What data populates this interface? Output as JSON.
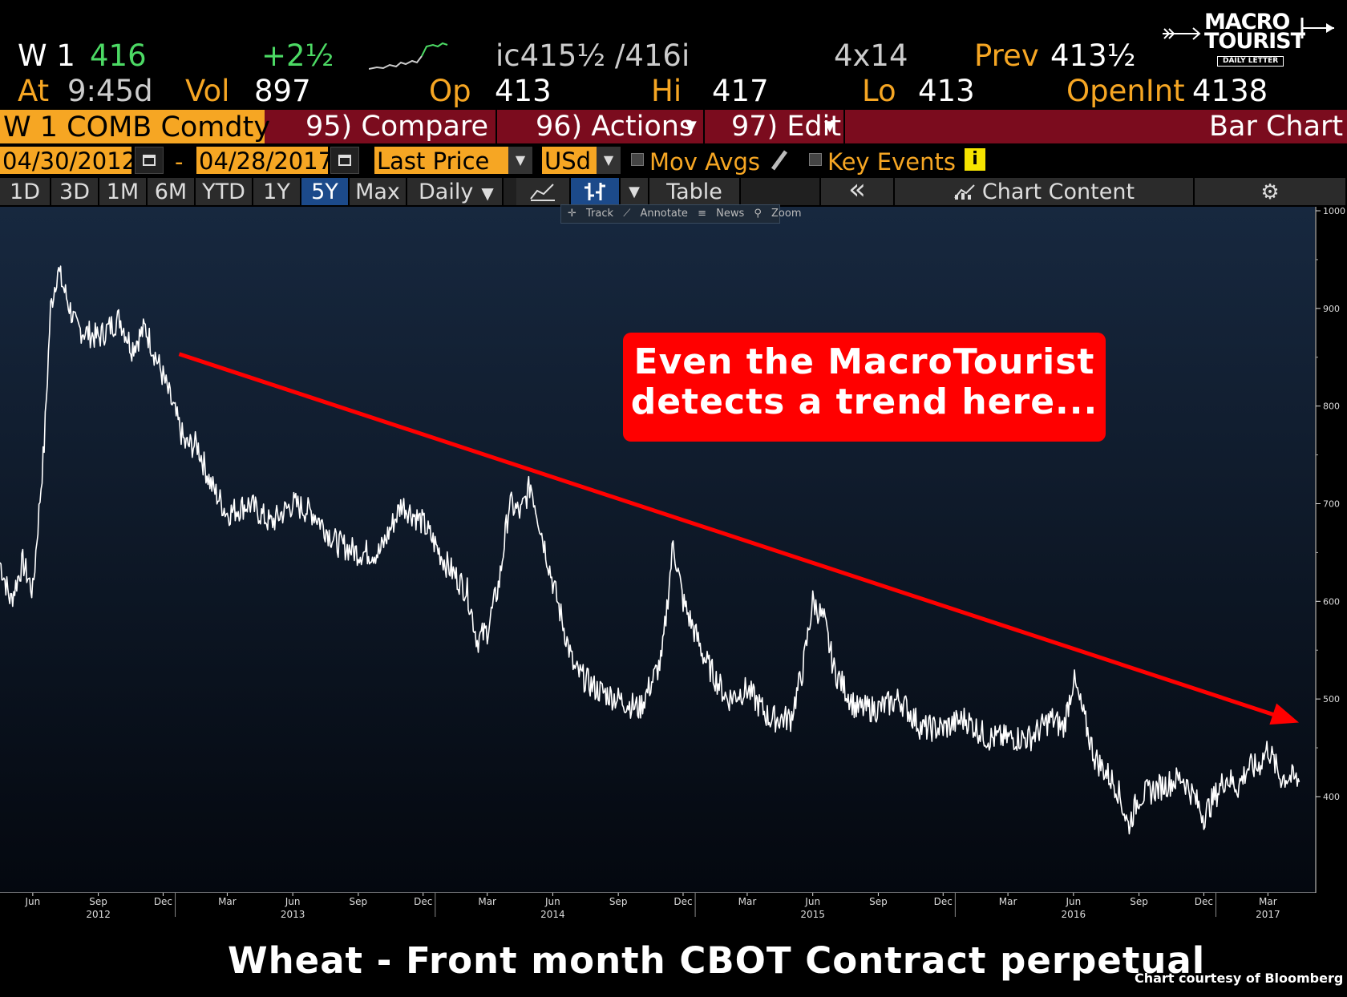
{
  "quote": {
    "ticker_short": "W 1",
    "last": "416",
    "change": "+2½",
    "bid_ask": "ic415½ /416i",
    "size": "4x14",
    "prev_label": "Prev",
    "prev": "413½",
    "at_label": "At",
    "time": "9:45d",
    "vol_label": "Vol",
    "vol": "897",
    "open_label": "Op",
    "open": "413",
    "high_label": "Hi",
    "high": "417",
    "low_label": "Lo",
    "low": "413",
    "oi_label": "OpenInt",
    "open_interest": "4138"
  },
  "logo": {
    "line1": "MACRO",
    "line2": "TOURIST",
    "line3": "DAILY LETTER"
  },
  "function_bar": {
    "security": "W 1 COMB Comdty",
    "compare": "95) Compare",
    "actions": "96) Actions",
    "edit": "97) Edit",
    "chart_type": "Bar Chart"
  },
  "settings": {
    "start_date": "04/30/2012",
    "date_sep": "-",
    "end_date": "04/28/2017",
    "field": "Last Price",
    "currency": "USd",
    "mov_avgs": "Mov Avgs",
    "key_events": "Key Events"
  },
  "periods": [
    "1D",
    "3D",
    "1M",
    "6M",
    "YTD",
    "1Y",
    "5Y",
    "Max"
  ],
  "active_period": "5Y",
  "frequency": "Daily",
  "toolbar": {
    "table": "Table",
    "collapse": "«",
    "chart_content": "Chart Content"
  },
  "chart_tools": [
    "Track",
    "Annotate",
    "News",
    "Zoom"
  ],
  "colors": {
    "orange": "#f6a623",
    "green": "#4cd964",
    "maroon": "#7b0c1e",
    "trend": "#ff0000",
    "active_tab": "#1c4a8a"
  },
  "chart_data": {
    "type": "line",
    "ylim": [
      350,
      1000
    ],
    "y_ticks": [
      400,
      500,
      600,
      700,
      800,
      900,
      1000
    ],
    "x_month_ticks": [
      "Jun",
      "Sep",
      "Dec",
      "Mar",
      "Jun",
      "Sep",
      "Dec",
      "Mar",
      "Jun",
      "Sep",
      "Dec",
      "Mar",
      "Jun",
      "Sep",
      "Dec",
      "Mar",
      "Jun",
      "Sep",
      "Dec",
      "Mar"
    ],
    "x_year_ticks": [
      "2012",
      "2013",
      "2014",
      "2015",
      "2016",
      "2017"
    ],
    "series": [
      {
        "x": [
          "2012-04-30",
          "2012-05-15",
          "2012-06-01",
          "2012-06-15",
          "2012-07-01",
          "2012-07-10",
          "2012-07-20",
          "2012-08-15",
          "2012-09-15",
          "2012-10-15",
          "2012-11-01",
          "2012-11-20",
          "2012-12-15",
          "2013-01-15",
          "2013-02-01",
          "2013-02-20",
          "2013-03-15",
          "2013-04-15",
          "2013-05-15",
          "2013-06-15",
          "2013-07-15",
          "2013-08-15",
          "2013-09-15",
          "2013-10-15",
          "2013-11-15",
          "2013-12-15",
          "2014-01-15",
          "2014-02-15",
          "2014-03-01",
          "2014-03-15",
          "2014-04-01",
          "2014-04-15",
          "2014-05-01",
          "2014-05-15",
          "2014-06-15",
          "2014-07-15",
          "2014-08-15",
          "2014-09-15",
          "2014-10-15",
          "2014-11-15",
          "2014-12-01",
          "2014-12-15",
          "2015-01-15",
          "2015-02-15",
          "2015-03-15",
          "2015-04-15",
          "2015-05-15",
          "2015-06-01",
          "2015-06-15",
          "2015-07-01",
          "2015-07-15",
          "2015-08-15",
          "2015-09-15",
          "2015-10-15",
          "2015-11-15",
          "2015-12-15",
          "2016-01-15",
          "2016-02-15",
          "2016-03-15",
          "2016-04-15",
          "2016-05-15",
          "2016-06-01",
          "2016-06-15",
          "2016-07-15",
          "2016-08-15",
          "2016-08-31",
          "2016-09-15",
          "2016-10-15",
          "2016-11-15",
          "2016-12-01",
          "2016-12-15",
          "2017-01-15",
          "2017-02-01",
          "2017-02-15",
          "2017-03-01",
          "2017-03-15",
          "2017-04-01",
          "2017-04-15",
          "2017-04-28"
        ],
        "y": [
          640,
          600,
          640,
          610,
          760,
          900,
          940,
          880,
          870,
          890,
          860,
          880,
          830,
          760,
          760,
          720,
          690,
          700,
          680,
          700,
          690,
          660,
          650,
          650,
          700,
          680,
          640,
          610,
          560,
          570,
          620,
          700,
          690,
          720,
          620,
          530,
          510,
          500,
          490,
          540,
          660,
          600,
          540,
          500,
          510,
          480,
          480,
          530,
          600,
          580,
          530,
          490,
          490,
          500,
          470,
          470,
          480,
          460,
          460,
          460,
          480,
          470,
          520,
          440,
          410,
          370,
          400,
          410,
          420,
          400,
          380,
          420,
          410,
          430,
          430,
          450,
          420,
          420,
          415
        ]
      }
    ],
    "trendline": {
      "x": [
        "2012-12-15",
        "2017-04-28"
      ],
      "y": [
        850,
        480
      ]
    }
  },
  "callout": {
    "line1": "Even the MacroTourist",
    "line2": "detects a trend here..."
  },
  "caption": "Wheat - Front month CBOT Contract perpetual",
  "credit": "Chart courtesy of Bloomberg"
}
